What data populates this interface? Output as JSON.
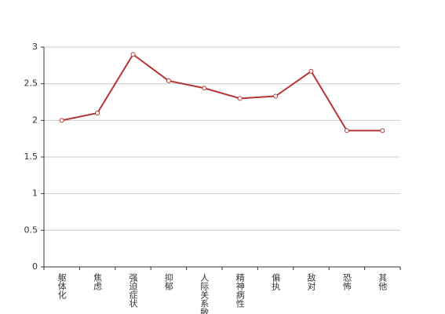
{
  "chart_data": {
    "type": "line",
    "categories": [
      "躯体化",
      "焦虑",
      "强迫症状",
      "抑郁",
      "人际关系敏感",
      "精神病性",
      "偏执",
      "敌对",
      "恐怖",
      "其他"
    ],
    "values": [
      2.0,
      2.1,
      2.9,
      2.54,
      2.44,
      2.3,
      2.33,
      2.67,
      1.86,
      1.86
    ],
    "color": "#b83535",
    "ylim": [
      0,
      3
    ],
    "yticks": [
      0,
      0.5,
      1,
      1.5,
      2,
      2.5,
      3
    ],
    "grid": true
  }
}
